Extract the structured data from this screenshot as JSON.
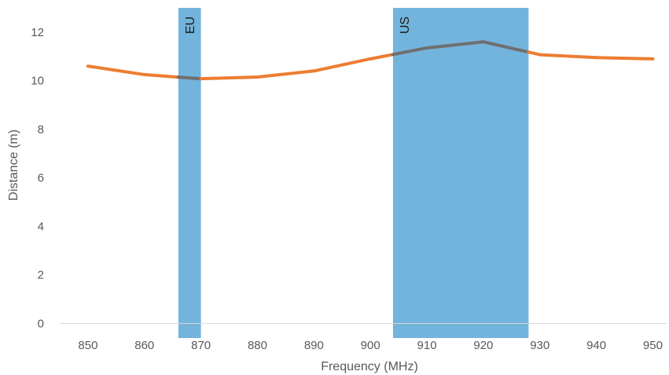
{
  "chart_data": {
    "type": "line",
    "title": "",
    "xlabel": "Frequency (MHz)",
    "ylabel": "Distance (m)",
    "x_ticks": [
      850,
      860,
      870,
      880,
      890,
      900,
      910,
      920,
      930,
      940,
      950
    ],
    "y_ticks": [
      0,
      2,
      4,
      6,
      8,
      10,
      12
    ],
    "xlim": [
      845,
      953
    ],
    "ylim": [
      -0.6,
      13
    ],
    "grid": false,
    "legend": "none",
    "series": [
      {
        "color": "#ED7D31",
        "x": [
          850,
          860,
          870,
          880,
          890,
          900,
          910,
          920,
          930,
          940,
          950
        ],
        "y": [
          10.6,
          10.25,
          10.08,
          10.15,
          10.4,
          10.9,
          11.35,
          11.6,
          11.07,
          10.95,
          10.9
        ]
      }
    ],
    "inside_band_color": "#6F6F6F",
    "bands": [
      {
        "label": "EU",
        "x_start": 866,
        "x_end": 870,
        "color": "#73B4DD"
      },
      {
        "label": "US",
        "x_start": 904,
        "x_end": 928,
        "color": "#73B4DD"
      }
    ]
  }
}
